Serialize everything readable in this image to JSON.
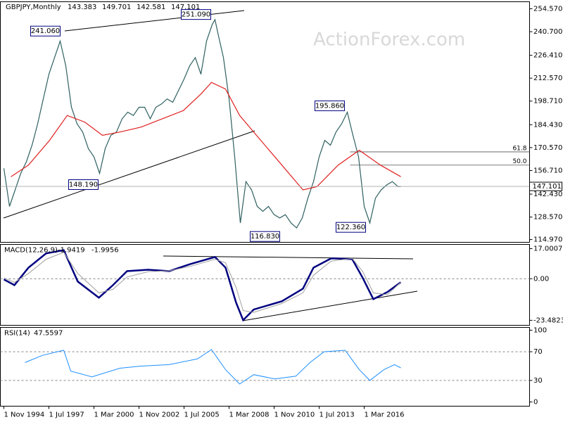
{
  "header": {
    "symbol": "GBPJPY,Monthly",
    "ohlc": [
      143.383,
      149.701,
      142.581,
      147.101
    ]
  },
  "watermark": "ActionForex.com",
  "chart_data": [
    {
      "type": "line",
      "xlim": [
        -2.5,
        373.5
      ],
      "ylim": [
        113.3,
        258.8
      ],
      "yticks": [
        {
          "value": 254.57,
          "label": "254.570"
        },
        {
          "value": 240.7,
          "label": "240.700"
        },
        {
          "value": 226.41,
          "label": "226.410"
        },
        {
          "value": 212.57,
          "label": "212.570"
        },
        {
          "value": 198.71,
          "label": "198.710"
        },
        {
          "value": 184.43,
          "label": "184.430"
        },
        {
          "value": 170.57,
          "label": "170.570"
        },
        {
          "value": 156.71,
          "label": "156.710"
        },
        {
          "value": 142.43,
          "label": "142.430"
        },
        {
          "value": 128.57,
          "label": "128.570"
        },
        {
          "value": 114.97,
          "label": "114.970"
        }
      ],
      "series": [
        {
          "color": "#2f6060",
          "x": [
            0,
            4,
            8,
            12,
            16,
            20,
            24,
            28,
            32,
            36,
            40,
            44,
            48,
            52,
            56,
            60,
            64,
            68,
            72,
            76,
            80,
            84,
            88,
            92,
            96,
            100,
            104,
            108,
            112,
            116,
            120,
            124,
            128,
            132,
            136,
            140,
            144,
            148,
            150,
            152,
            156,
            160,
            164,
            168,
            172,
            176,
            180,
            184,
            188,
            192,
            196,
            200,
            204,
            208,
            212,
            216,
            220,
            224,
            228,
            232,
            236,
            240,
            244,
            248,
            252,
            256,
            260,
            264,
            268,
            272,
            276,
            280,
            282
          ],
          "values": [
            158,
            135,
            145,
            155,
            162,
            172,
            185,
            200,
            215,
            225,
            235,
            220,
            195,
            185,
            180,
            170,
            165,
            155,
            170,
            178,
            180,
            188,
            192,
            190,
            195,
            195,
            188,
            195,
            197,
            200,
            198,
            205,
            212,
            220,
            225,
            215,
            235,
            245,
            248,
            240,
            225,
            200,
            165,
            125,
            150,
            145,
            135,
            132,
            135,
            130,
            128,
            130,
            125,
            122,
            128,
            140,
            150,
            165,
            175,
            172,
            180,
            185,
            192,
            178,
            165,
            135,
            125,
            140,
            145,
            148,
            150,
            147,
            147.101
          ]
        },
        {
          "color": "#e02020",
          "x": [
            5,
            17.5,
            32.5,
            45,
            57.5,
            70,
            82.5,
            97.5,
            112.5,
            127.5,
            140,
            147.5,
            157.5,
            167.5,
            182.5,
            197.5,
            212.5,
            222.5,
            237.5,
            252.5,
            267.5,
            282
          ],
          "values": [
            153,
            160,
            175,
            190,
            186,
            178,
            180,
            183,
            188,
            193,
            203,
            210,
            206,
            190,
            175,
            160,
            145,
            147,
            160,
            169,
            160,
            153
          ]
        }
      ],
      "annotations": [
        {
          "value": 241.06,
          "label": "241.060",
          "x": 43
        },
        {
          "value": 251.09,
          "label": "251.090",
          "x": 150
        },
        {
          "value": 148.19,
          "label": "148.190",
          "x": 70
        },
        {
          "value": 116.83,
          "label": "116.830",
          "x": 170
        },
        {
          "value": 195.86,
          "label": "195.860",
          "x": 245
        },
        {
          "value": 122.36,
          "label": "122.360",
          "x": 260
        }
      ],
      "fib_levels": [
        {
          "value": 61.8,
          "label": "61.8",
          "price": 168.0,
          "from": 246
        },
        {
          "value": 50,
          "label": "50.0",
          "price": 160.0,
          "from": 246
        }
      ]
    },
    {
      "type": "line",
      "title": "MACD(12,26,9)",
      "xlim": [
        -2.5,
        373.5
      ],
      "ylim": [
        -26.3,
        19.4
      ],
      "yticks": [
        17.0007,
        {
          "value": 0,
          "label": "0.00"
        },
        -23.4823
      ],
      "series": [
        {
          "color": "#000080",
          "width": 2.5,
          "x": [
            0,
            7.5,
            17.5,
            30,
            42.5,
            52.5,
            67.5,
            77.5,
            87.5,
            102.5,
            117.5,
            132.5,
            150,
            157.5,
            165,
            170,
            177.5,
            197.5,
            212.5,
            220,
            232.5,
            247.5,
            255,
            262.5,
            272.5,
            282
          ],
          "values": [
            -0.4,
            -3.6,
            6.3,
            14.3,
            16.2,
            -1.6,
            -10.7,
            -3.6,
            4.3,
            5.1,
            4.3,
            8.3,
            12.3,
            6.3,
            -13.5,
            -23.4,
            -17.4,
            -12.7,
            -5.6,
            6.3,
            11.5,
            11.1,
            0.4,
            -11.5,
            -7.5,
            -1.9419
          ]
        },
        {
          "color": "#a0a0a0",
          "width": 1,
          "x": [
            0,
            7.5,
            17.5,
            30,
            42.5,
            52.5,
            67.5,
            77.5,
            87.5,
            102.5,
            117.5,
            132.5,
            150,
            157.5,
            165,
            170,
            177.5,
            197.5,
            212.5,
            220,
            232.5,
            247.5,
            255,
            262.5,
            272.5,
            282
          ],
          "values": [
            0.5,
            -2,
            3,
            11,
            15,
            3,
            -8,
            -6,
            1,
            4,
            4.5,
            7,
            11,
            9,
            -5,
            -18,
            -19,
            -14,
            -8,
            2,
            10,
            11.5,
            4,
            -8,
            -9,
            -1.9956
          ]
        }
      ]
    },
    {
      "type": "line",
      "title": "RSI(14)",
      "xlim": [
        -2.5,
        373.5
      ],
      "ylim": [
        -5.9,
        103.9
      ],
      "yticks": [
        100,
        70,
        30,
        0
      ],
      "xticks": [
        {
          "value": 0,
          "label": "1 Nov 1994"
        },
        {
          "value": 32,
          "label": "1 Jul 1997"
        },
        {
          "value": 64,
          "label": "1 Mar 2000"
        },
        {
          "value": 96,
          "label": "1 Nov 2002"
        },
        {
          "value": 128,
          "label": "1 Jul 2005"
        },
        {
          "value": 160,
          "label": "1 Mar 2008"
        },
        {
          "value": 192,
          "label": "1 Nov 2010"
        },
        {
          "value": 224,
          "label": "1 Jul 2013"
        },
        {
          "value": 256,
          "label": "1 Mar 2016"
        }
      ],
      "series": [
        {
          "color": "#1e90ff",
          "width": 1,
          "x": [
            15,
            27.5,
            42.5,
            47.5,
            62.5,
            82.5,
            97.5,
            117.5,
            137.5,
            147.5,
            157.5,
            167.5,
            177.5,
            192.5,
            207.5,
            217.5,
            227.5,
            242.5,
            252.5,
            260,
            270,
            277.5,
            282
          ],
          "values": [
            55,
            65,
            72,
            43,
            35,
            47,
            50,
            52,
            60,
            73,
            45,
            25,
            38,
            32,
            36,
            55,
            70,
            72,
            45,
            30,
            45,
            52,
            47.5597
          ]
        }
      ]
    }
  ]
}
